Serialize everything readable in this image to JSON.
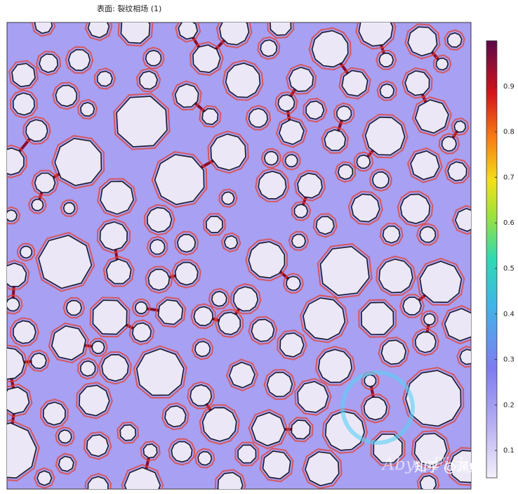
{
  "title": "表面: 裂纹相场 (1)",
  "colorbar": {
    "clim": [
      0.04,
      1
    ],
    "ticks": [
      0.1,
      0.2,
      0.3,
      0.4,
      0.5,
      0.6,
      0.7,
      0.8,
      0.9
    ]
  },
  "watermark": {
    "brand": "AbyssFish",
    "author": "知乎 @渊鱼"
  }
}
